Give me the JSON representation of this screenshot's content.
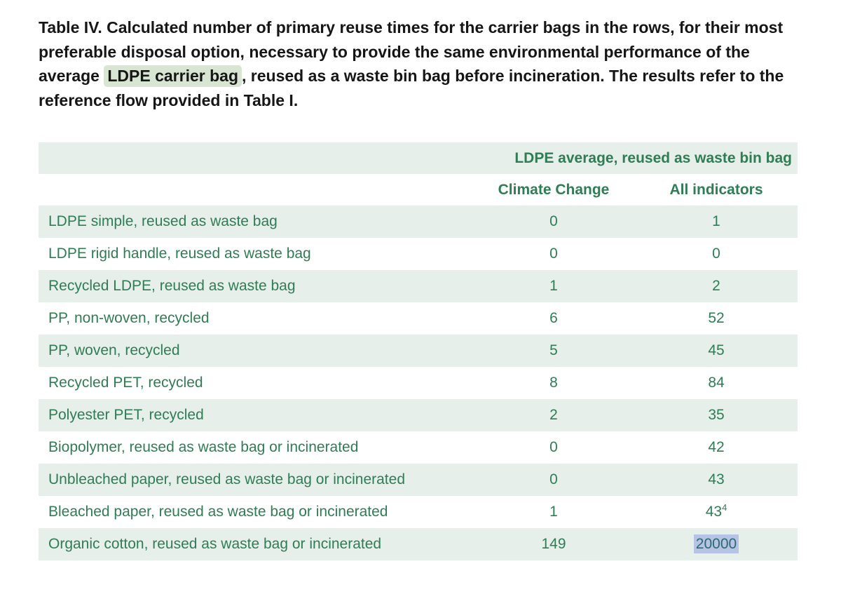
{
  "caption": {
    "pre": "Table IV. Calculated number of primary reuse times for the carrier bags in the rows, for their most preferable disposal option, necessary to provide the same environmental performance of the average ",
    "highlight": "LDPE carrier bag",
    "post": ", reused as a waste bin bag before incin­eration. The results refer to the reference flow provided in Table I."
  },
  "table": {
    "span_header": "LDPE average, reused as waste bin bag",
    "columns": [
      "Climate Change",
      "All indicators"
    ],
    "rows": [
      {
        "label": "LDPE simple, reused as waste bag",
        "climate_change": "0",
        "all_indicators": "1"
      },
      {
        "label": "LDPE rigid handle, reused as waste bag",
        "climate_change": "0",
        "all_indicators": "0"
      },
      {
        "label": "Recycled LDPE, reused as waste bag",
        "climate_change": "1",
        "all_indicators": "2"
      },
      {
        "label": "PP, non-woven, recycled",
        "climate_change": "6",
        "all_indicators": "52"
      },
      {
        "label": "PP, woven, recycled",
        "climate_change": "5",
        "all_indicators": "45"
      },
      {
        "label": "Recycled PET, recycled",
        "climate_change": "8",
        "all_indicators": "84"
      },
      {
        "label": "Polyester PET, recycled",
        "climate_change": "2",
        "all_indicators": "35"
      },
      {
        "label": "Biopolymer, reused as waste bag or incinerated",
        "climate_change": "0",
        "all_indicators": "42"
      },
      {
        "label": "Unbleached paper, reused as waste bag or incinerated",
        "climate_change": "0",
        "all_indicators": "43"
      },
      {
        "label": "Bleached paper, reused as waste bag or incinerated",
        "climate_change": "1",
        "all_indicators": "43",
        "all_indicators_footnote": "4"
      },
      {
        "label": "Organic cotton, reused as waste bag or incinerated",
        "climate_change": "149",
        "all_indicators": "20000",
        "selected": true
      }
    ]
  },
  "colors": {
    "text_green": "#2f7d54",
    "row_band": "#e6efe9",
    "caption_highlight": "#d8e5d3",
    "text_selection": "#b5c3e5"
  }
}
